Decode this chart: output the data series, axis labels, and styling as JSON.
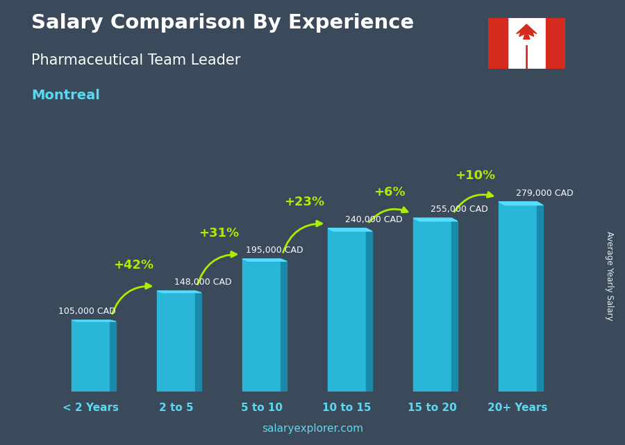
{
  "title_line1": "Salary Comparison By Experience",
  "title_line2": "Pharmaceutical Team Leader",
  "city": "Montreal",
  "categories": [
    "< 2 Years",
    "2 to 5",
    "5 to 10",
    "10 to 15",
    "15 to 20",
    "20+ Years"
  ],
  "values": [
    105000,
    148000,
    195000,
    240000,
    255000,
    279000
  ],
  "salary_labels": [
    "105,000 CAD",
    "148,000 CAD",
    "195,000 CAD",
    "240,000 CAD",
    "255,000 CAD",
    "279,000 CAD"
  ],
  "pct_labels": [
    "+42%",
    "+31%",
    "+23%",
    "+6%",
    "+10%"
  ],
  "bar_color_face": "#29b6d8",
  "bar_color_right": "#1a8aaa",
  "bar_color_top": "#55ddff",
  "bg_color": "#3a4a5a",
  "text_color_white": "#ffffff",
  "text_color_cyan": "#5dd8ee",
  "text_color_green": "#aaee00",
  "watermark": "salaryexplorer.com",
  "ylabel": "Average Yearly Salary",
  "ymax": 340000,
  "flag_red": "#d52b1e",
  "flag_white": "#ffffff"
}
